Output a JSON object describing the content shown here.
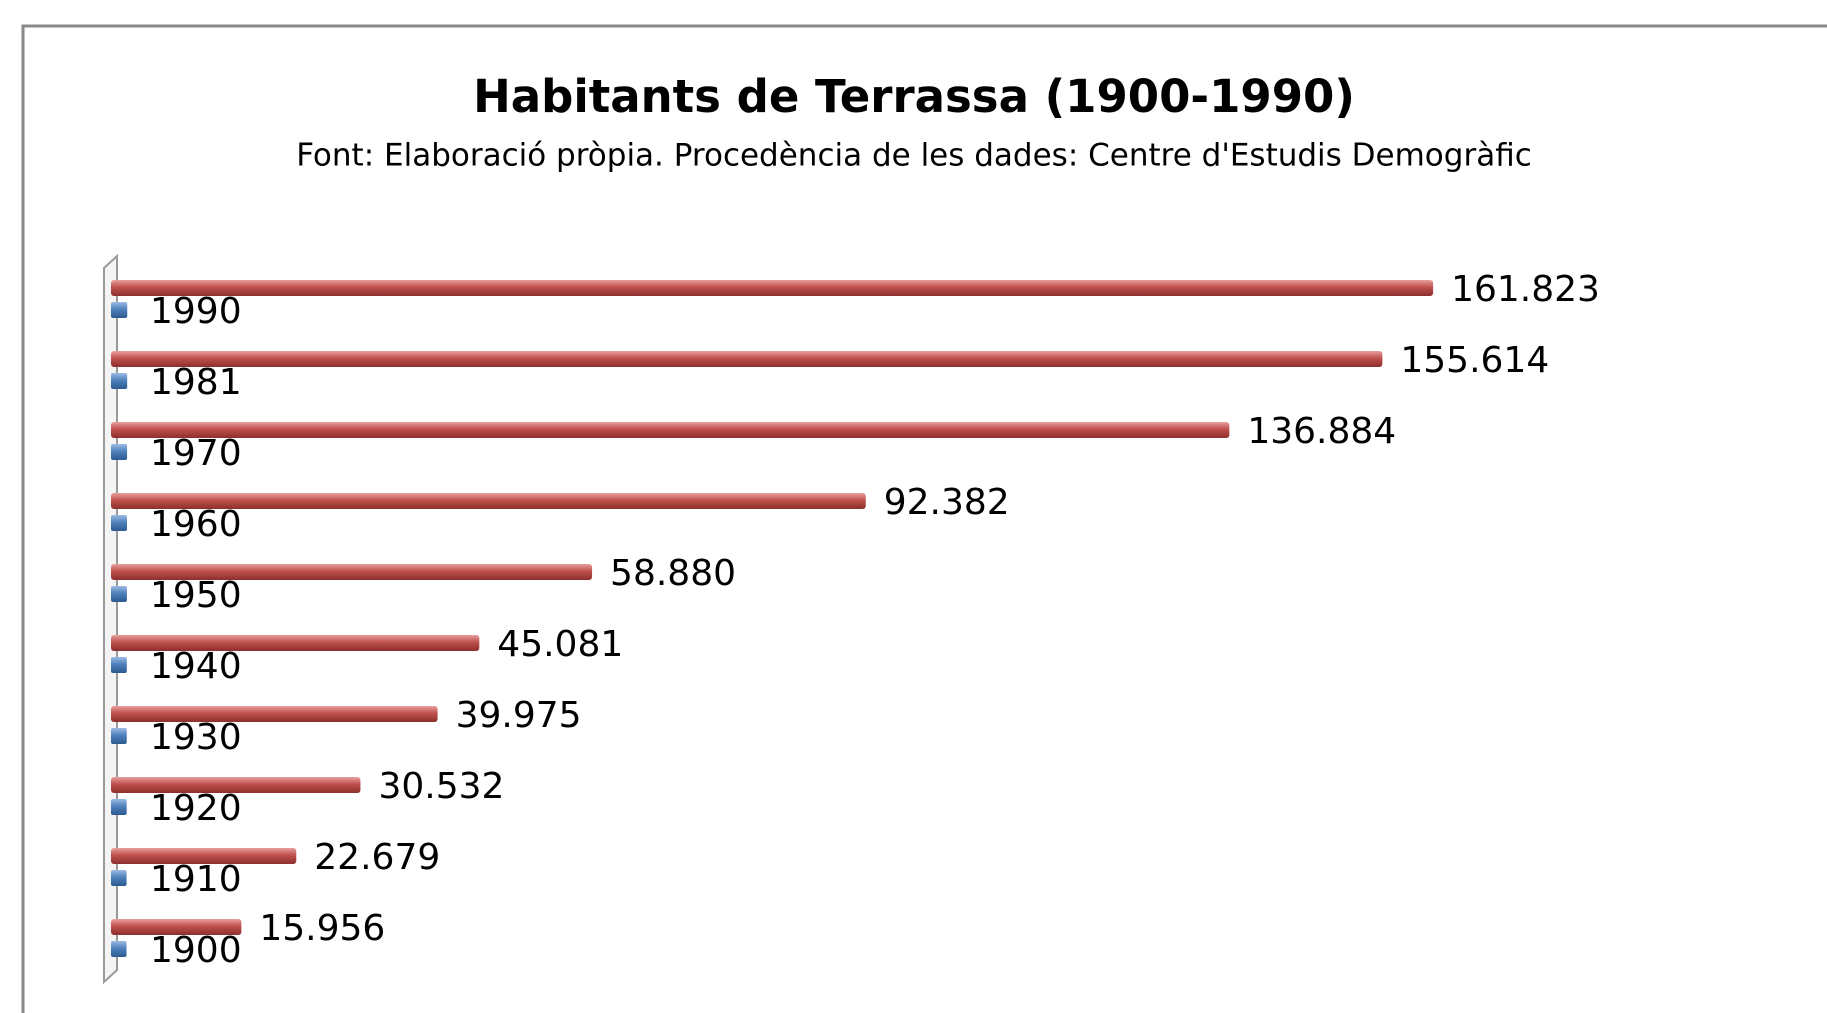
{
  "chart_data": {
    "type": "bar",
    "orientation": "horizontal",
    "title": "Habitants de Terrassa (1900-1990)",
    "subtitle": "Font: Elaboració pròpia. Procedència de les dades: Centre d'Estudis Demogràfic",
    "series": [
      {
        "color": "#c0504d",
        "values": [
          15956,
          22679,
          30532,
          39975,
          45081,
          58880,
          92382,
          136884,
          155614,
          161823
        ],
        "value_labels": [
          "15.956",
          "22.679",
          "30.532",
          "39.975",
          "45.081",
          "58.880",
          "92.382",
          "136.884",
          "155.614",
          "161.823"
        ]
      },
      {
        "color": "#4f81bd",
        "values": [
          1900,
          1910,
          1920,
          1930,
          1940,
          1950,
          1960,
          1970,
          1981,
          1990
        ]
      }
    ],
    "xlim": [
      0,
      200000
    ]
  }
}
